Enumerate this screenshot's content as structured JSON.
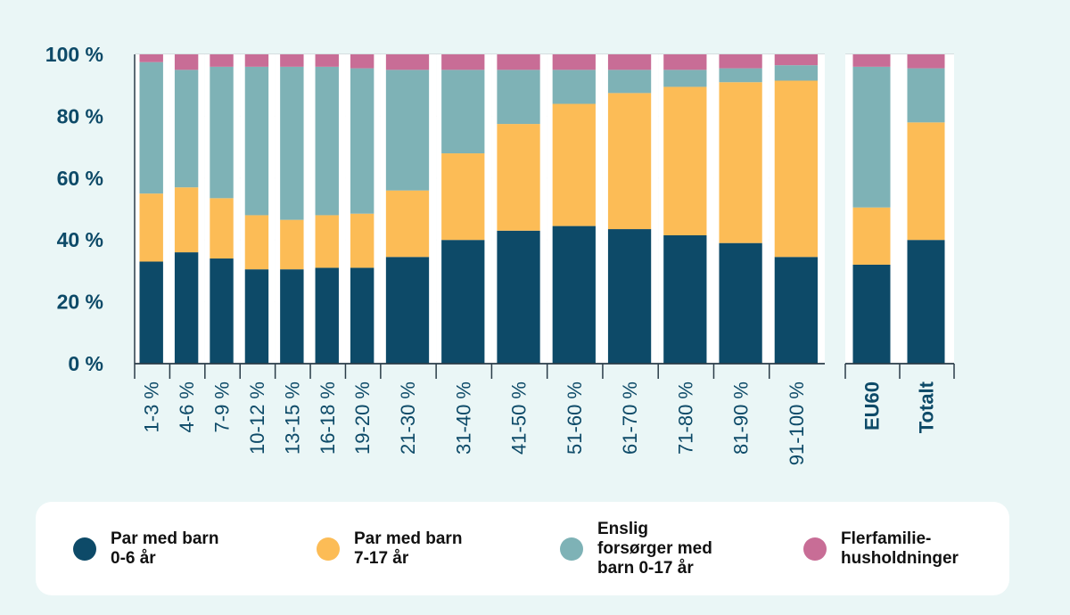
{
  "chart_data": {
    "type": "bar",
    "stacked": true,
    "percent": true,
    "title": "",
    "xlabel": "",
    "ylabel": "",
    "ylim": [
      0,
      100
    ],
    "yticks": [
      "0 %",
      "20 %",
      "40 %",
      "60 %",
      "80 %",
      "100 %"
    ],
    "grid": true,
    "legend_position": "bottom",
    "groups": [
      {
        "categories": [
          "1-3 %",
          "4-6 %",
          "7-9 %",
          "10-12 %",
          "13-15 %",
          "16-18 %",
          "19-20 %",
          "21-30 %",
          "31-40 %",
          "41-50 %",
          "51-60 %",
          "61-70 %",
          "71-80 %",
          "81-90 %",
          "91-100 %"
        ]
      },
      {
        "categories": [
          "EU60",
          "Totalt"
        ],
        "bold": true
      }
    ],
    "series": [
      {
        "name": "Par med barn\n0-6 år",
        "color": "#0d4a68",
        "values": [
          33,
          36,
          34,
          30.5,
          30.5,
          31,
          31,
          34.5,
          40,
          43,
          44.5,
          43.5,
          41.5,
          39,
          34.5,
          32,
          40
        ]
      },
      {
        "name": "Par med barn\n7-17 år",
        "color": "#fcbc56",
        "values": [
          22,
          21,
          19.5,
          17.5,
          16,
          17,
          17.5,
          21.5,
          28,
          34.5,
          39.5,
          44,
          48,
          52,
          57,
          18.5,
          38
        ]
      },
      {
        "name": "Enslig\nforsørger med\nbarn 0-17 år",
        "color": "#7eb2b6",
        "values": [
          42.5,
          38,
          42.5,
          48,
          49.5,
          48,
          47,
          39,
          27,
          17.5,
          11,
          7.5,
          5.5,
          4.5,
          5,
          45.5,
          17.5
        ]
      },
      {
        "name": "Flerfamilie-\nhusholdninger",
        "color": "#c86d96",
        "values": [
          2.5,
          5,
          4,
          4,
          4,
          4,
          4.5,
          5,
          5,
          5,
          5,
          5,
          5,
          4.5,
          3.5,
          4,
          4.5
        ]
      }
    ]
  }
}
